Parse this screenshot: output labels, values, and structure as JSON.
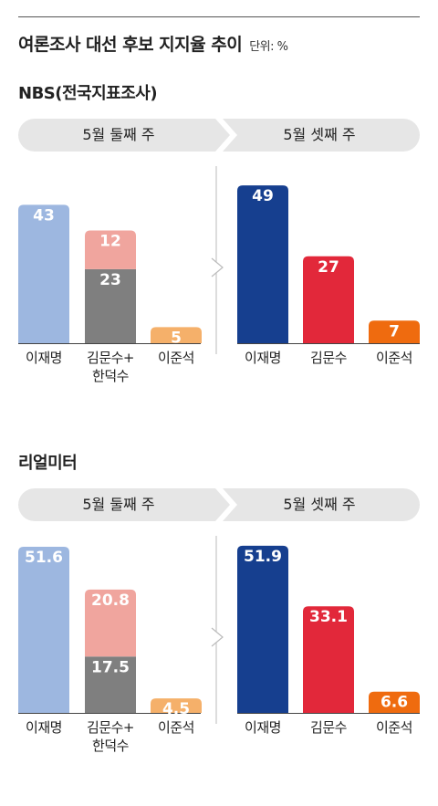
{
  "header": {
    "title": "여론조사 대선 후보 지지율 추이",
    "unit": "단위: %"
  },
  "colors": {
    "lee_jm_period1": "#9db7e0",
    "lee_jm_period2": "#163f8f",
    "kim_period1_lower": "#7f7f7f",
    "kim_period1_upper": "#f0a59e",
    "kim_period2": "#e2283a",
    "lee_js_period1": "#f5b06a",
    "lee_js_period2": "#ef6b0f",
    "band": "#e6e6e6"
  },
  "chart_data": [
    {
      "type": "bar",
      "title": "NBS(전국지표조사)",
      "periods": [
        "5월 둘째 주",
        "5월 셋째 주"
      ],
      "ylim": [
        0,
        55
      ],
      "groups": [
        {
          "period": "5월 둘째 주",
          "categories": [
            "이재명",
            "김문수+\n한덕수",
            "이준석"
          ],
          "bars": [
            {
              "category": "이재명",
              "segments": [
                {
                  "value": 43,
                  "label": "43"
                }
              ]
            },
            {
              "category": "김문수+\n한덕수",
              "segments": [
                {
                  "value": 23,
                  "label": "23"
                },
                {
                  "value": 12,
                  "label": "12"
                }
              ]
            },
            {
              "category": "이준석",
              "segments": [
                {
                  "value": 5,
                  "label": "5"
                }
              ]
            }
          ]
        },
        {
          "period": "5월 셋째 주",
          "categories": [
            "이재명",
            "김문수",
            "이준석"
          ],
          "bars": [
            {
              "category": "이재명",
              "segments": [
                {
                  "value": 49,
                  "label": "49"
                }
              ]
            },
            {
              "category": "김문수",
              "segments": [
                {
                  "value": 27,
                  "label": "27"
                }
              ]
            },
            {
              "category": "이준석",
              "segments": [
                {
                  "value": 7,
                  "label": "7"
                }
              ]
            }
          ]
        }
      ]
    },
    {
      "type": "bar",
      "title": "리얼미터",
      "periods": [
        "5월 둘째 주",
        "5월 셋째 주"
      ],
      "ylim": [
        0,
        55
      ],
      "groups": [
        {
          "period": "5월 둘째 주",
          "categories": [
            "이재명",
            "김문수+\n한덕수",
            "이준석"
          ],
          "bars": [
            {
              "category": "이재명",
              "segments": [
                {
                  "value": 51.6,
                  "label": "51.6"
                }
              ]
            },
            {
              "category": "김문수+\n한덕수",
              "segments": [
                {
                  "value": 17.5,
                  "label": "17.5"
                },
                {
                  "value": 20.8,
                  "label": "20.8"
                }
              ]
            },
            {
              "category": "이준석",
              "segments": [
                {
                  "value": 4.5,
                  "label": "4.5"
                }
              ]
            }
          ]
        },
        {
          "period": "5월 셋째 주",
          "categories": [
            "이재명",
            "김문수",
            "이준석"
          ],
          "bars": [
            {
              "category": "이재명",
              "segments": [
                {
                  "value": 51.9,
                  "label": "51.9"
                }
              ]
            },
            {
              "category": "김문수",
              "segments": [
                {
                  "value": 33.1,
                  "label": "33.1"
                }
              ]
            },
            {
              "category": "이준석",
              "segments": [
                {
                  "value": 6.6,
                  "label": "6.6"
                }
              ]
            }
          ]
        }
      ]
    }
  ]
}
